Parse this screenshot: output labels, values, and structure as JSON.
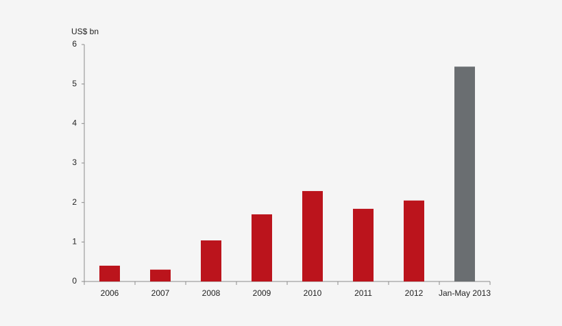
{
  "chart_data": {
    "type": "bar",
    "ylabel": "US$ bn",
    "categories": [
      "2006",
      "2007",
      "2008",
      "2009",
      "2010",
      "2011",
      "2012",
      "Jan-May 2013"
    ],
    "values": [
      0.4,
      0.3,
      1.04,
      1.7,
      2.29,
      1.84,
      2.05,
      5.44
    ],
    "colors": [
      "#bb141c",
      "#bb141c",
      "#bb141c",
      "#bb141c",
      "#bb141c",
      "#bb141c",
      "#bb141c",
      "#6a6e71"
    ],
    "ylim": [
      0,
      6
    ],
    "yticks": [
      0,
      1,
      2,
      3,
      4,
      5,
      6
    ],
    "grid": false
  }
}
